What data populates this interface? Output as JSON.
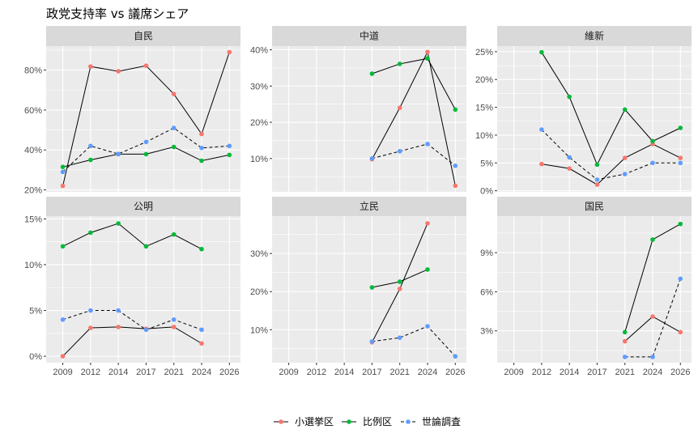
{
  "chart_data": {
    "type": "line",
    "title": "政党支持率 vs 議席シェア",
    "xlabel": "",
    "ylabel": "",
    "x": [
      "2009",
      "2012",
      "2014",
      "2017",
      "2021",
      "2024",
      "2026"
    ],
    "grid": true,
    "legend": {
      "position": "bottom",
      "items": [
        {
          "key": "smd",
          "label": "小選挙区",
          "color": "#F8766D",
          "linetype": "solid"
        },
        {
          "key": "pr",
          "label": "比例区",
          "color": "#00BA38",
          "linetype": "solid"
        },
        {
          "key": "poll",
          "label": "世論調査",
          "color": "#619CFF",
          "linetype": "dashed"
        }
      ]
    },
    "panels": [
      {
        "name": "自民",
        "ylim": [
          19,
          92
        ],
        "y_ticks": [
          20,
          40,
          60,
          80
        ],
        "y_tick_labels": [
          "20%",
          "40%",
          "60%",
          "80%"
        ],
        "show_x_labels": false,
        "series": {
          "smd": [
            22,
            81.8,
            79.4,
            82.2,
            68,
            48,
            89
          ],
          "pr": [
            31.5,
            35,
            37.9,
            37.9,
            41.5,
            34.6,
            37.5
          ],
          "poll": [
            29,
            42,
            38,
            44,
            51,
            41,
            42
          ]
        }
      },
      {
        "name": "中道",
        "ylim": [
          0.8,
          41
        ],
        "y_ticks": [
          10,
          20,
          30,
          40
        ],
        "y_tick_labels": [
          "10%",
          "20%",
          "30%",
          "40%"
        ],
        "show_x_labels": false,
        "series": {
          "smd": [
            null,
            null,
            null,
            9.8,
            24,
            39.4,
            2.5
          ],
          "pr": [
            null,
            null,
            null,
            33.4,
            36.1,
            37.6,
            23.5
          ],
          "poll": [
            null,
            null,
            null,
            10,
            12,
            14,
            8
          ]
        }
      },
      {
        "name": "維新",
        "ylim": [
          -0.2,
          26
        ],
        "y_ticks": [
          0,
          5,
          10,
          15,
          20,
          25
        ],
        "y_tick_labels": [
          "0%",
          "5%",
          "10%",
          "15%",
          "20%",
          "25%"
        ],
        "show_x_labels": false,
        "series": {
          "smd": [
            null,
            4.8,
            4.0,
            1.1,
            5.9,
            8.4,
            5.9
          ],
          "pr": [
            null,
            24.9,
            16.9,
            4.7,
            14.6,
            8.9,
            11.3
          ],
          "poll": [
            null,
            11,
            6,
            2,
            3,
            5,
            5
          ]
        }
      },
      {
        "name": "公明",
        "ylim": [
          -0.7,
          15.3
        ],
        "y_ticks": [
          0,
          5,
          10,
          15
        ],
        "y_tick_labels": [
          "0%",
          "5%",
          "10%",
          "15%"
        ],
        "show_x_labels": true,
        "series": {
          "smd": [
            0,
            3.1,
            3.2,
            3.0,
            3.2,
            1.4,
            null
          ],
          "pr": [
            12.0,
            13.5,
            14.5,
            12.0,
            13.3,
            11.7,
            null
          ],
          "poll": [
            4,
            5,
            5,
            2.9,
            4,
            2.9,
            null
          ]
        }
      },
      {
        "name": "立民",
        "ylim": [
          1.35,
          39.8
        ],
        "y_ticks": [
          10,
          20,
          30
        ],
        "y_tick_labels": [
          "10%",
          "20%",
          "30%"
        ],
        "show_x_labels": true,
        "series": {
          "smd": [
            null,
            null,
            null,
            6.7,
            20.7,
            37.9,
            null
          ],
          "pr": [
            null,
            null,
            null,
            21.1,
            22.6,
            25.8,
            null
          ],
          "poll": [
            null,
            null,
            null,
            6.9,
            7.9,
            10.9,
            3.0
          ]
        }
      },
      {
        "name": "国民",
        "ylim": [
          0.56,
          11.8
        ],
        "y_ticks": [
          3,
          6,
          9
        ],
        "y_tick_labels": [
          "3%",
          "6%",
          "9%"
        ],
        "show_x_labels": true,
        "series": {
          "smd": [
            null,
            null,
            null,
            null,
            2.2,
            4.1,
            2.9
          ],
          "pr": [
            null,
            null,
            null,
            null,
            2.9,
            10.0,
            11.2
          ],
          "poll": [
            null,
            null,
            null,
            null,
            1.0,
            1.0,
            7.0
          ]
        }
      }
    ]
  }
}
